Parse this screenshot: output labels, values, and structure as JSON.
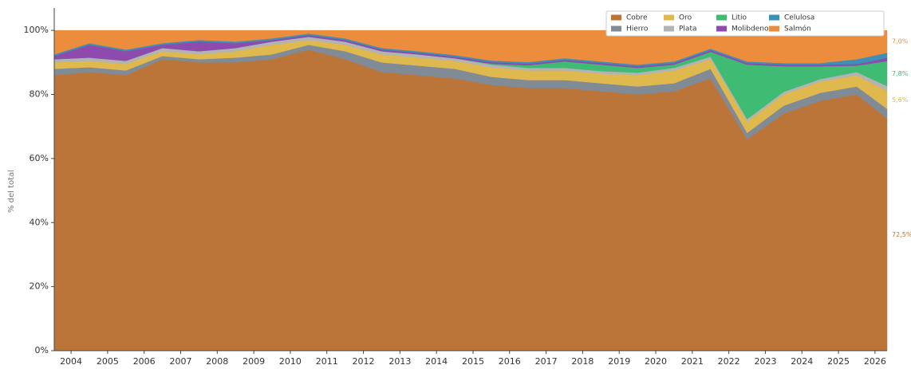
{
  "chart_data": {
    "type": "stacked_area",
    "ylabel": "% del total",
    "x": [
      2003.54,
      2004.5,
      2005.5,
      2006.5,
      2007.5,
      2008.5,
      2009.5,
      2010.5,
      2011.5,
      2012.5,
      2013.5,
      2014.5,
      2015.5,
      2016.5,
      2017.5,
      2018.5,
      2019.5,
      2020.5,
      2021.5,
      2022.5,
      2023.5,
      2024.5,
      2025.5,
      2026.33
    ],
    "xlim": [
      2003.54,
      2026.33
    ],
    "xticks": [
      2004,
      2005,
      2006,
      2007,
      2008,
      2009,
      2010,
      2011,
      2012,
      2013,
      2014,
      2015,
      2016,
      2017,
      2018,
      2019,
      2020,
      2021,
      2022,
      2023,
      2024,
      2025,
      2026
    ],
    "ylim": [
      0,
      107
    ],
    "yticks": [
      {
        "value": 0,
        "label": "0%"
      },
      {
        "value": 20,
        "label": "20%"
      },
      {
        "value": 40,
        "label": "40%"
      },
      {
        "value": 60,
        "label": "60%"
      },
      {
        "value": 80,
        "label": "80%"
      },
      {
        "value": 100,
        "label": "100%"
      }
    ],
    "legend": "upper right",
    "series": [
      {
        "name": "Cobre",
        "color": "#bb7538",
        "end_label": "72,5%",
        "values": [
          86,
          87,
          86,
          91,
          90,
          90,
          91,
          94,
          91,
          87,
          86,
          85,
          83,
          82,
          82,
          81,
          80,
          81,
          85,
          66,
          74,
          78,
          80,
          72.5
        ]
      },
      {
        "name": "Hierro",
        "color": "#808b96",
        "values": [
          2,
          1.5,
          1.5,
          1,
          1,
          1.5,
          1.5,
          1.5,
          2.5,
          3,
          3,
          3,
          2.5,
          2.5,
          2.5,
          2.5,
          2.5,
          2.5,
          3,
          2,
          2.5,
          2.5,
          2.5,
          3
        ]
      },
      {
        "name": "Oro",
        "color": "#dfb84e",
        "end_label": "5,6%",
        "values": [
          2,
          2,
          2,
          1.5,
          1.5,
          2,
          3,
          1.5,
          2,
          2.5,
          2.5,
          2.5,
          3,
          3,
          3,
          3,
          3.5,
          4,
          3,
          3.5,
          3.5,
          3.5,
          3.5,
          5.6
        ]
      },
      {
        "name": "Plata",
        "color": "#b3b3b3",
        "values": [
          1,
          1,
          1,
          1,
          1,
          1,
          1,
          1,
          1,
          1,
          1,
          0.8,
          0.8,
          0.8,
          0.8,
          0.8,
          0.8,
          0.8,
          0.8,
          0.8,
          0.8,
          0.8,
          1,
          1.5
        ]
      },
      {
        "name": "Litio",
        "color": "#3fbb74",
        "end_label": "7,8%",
        "values": [
          0,
          0,
          0,
          0,
          0,
          0,
          0,
          0,
          0,
          0,
          0,
          0,
          0.3,
          0.8,
          2,
          2,
          1.5,
          1,
          1.5,
          17,
          8,
          4,
          2,
          7.8
        ]
      },
      {
        "name": "Molibdeno",
        "color": "#8e4aac",
        "values": [
          1,
          4,
          3,
          1,
          3,
          1.5,
          0.5,
          0.5,
          0.5,
          0.5,
          0.5,
          0.5,
          0.5,
          0.5,
          0.5,
          0.5,
          0.5,
          0.5,
          0.5,
          0.5,
          0.5,
          0.5,
          0.5,
          1
        ]
      },
      {
        "name": "Celulosa",
        "color": "#3c8fb6",
        "values": [
          0.5,
          0.5,
          0.5,
          0.5,
          0.5,
          0.5,
          0.5,
          0.5,
          0.5,
          0.5,
          0.5,
          0.5,
          0.5,
          0.5,
          0.5,
          0.5,
          0.5,
          0.5,
          0.5,
          0.5,
          0.5,
          0.5,
          1.5,
          1.6
        ]
      },
      {
        "name": "Salmón",
        "color": "#ec8c3d",
        "end_label": "7,0%",
        "values": [
          7.5,
          4,
          6,
          4,
          3,
          3.5,
          2.5,
          1,
          2.5,
          5.5,
          6.5,
          7.7,
          9.4,
          9.9,
          8.7,
          9.7,
          10.7,
          9.7,
          5.7,
          9.7,
          10.2,
          10.2,
          9,
          7.0
        ]
      }
    ]
  }
}
